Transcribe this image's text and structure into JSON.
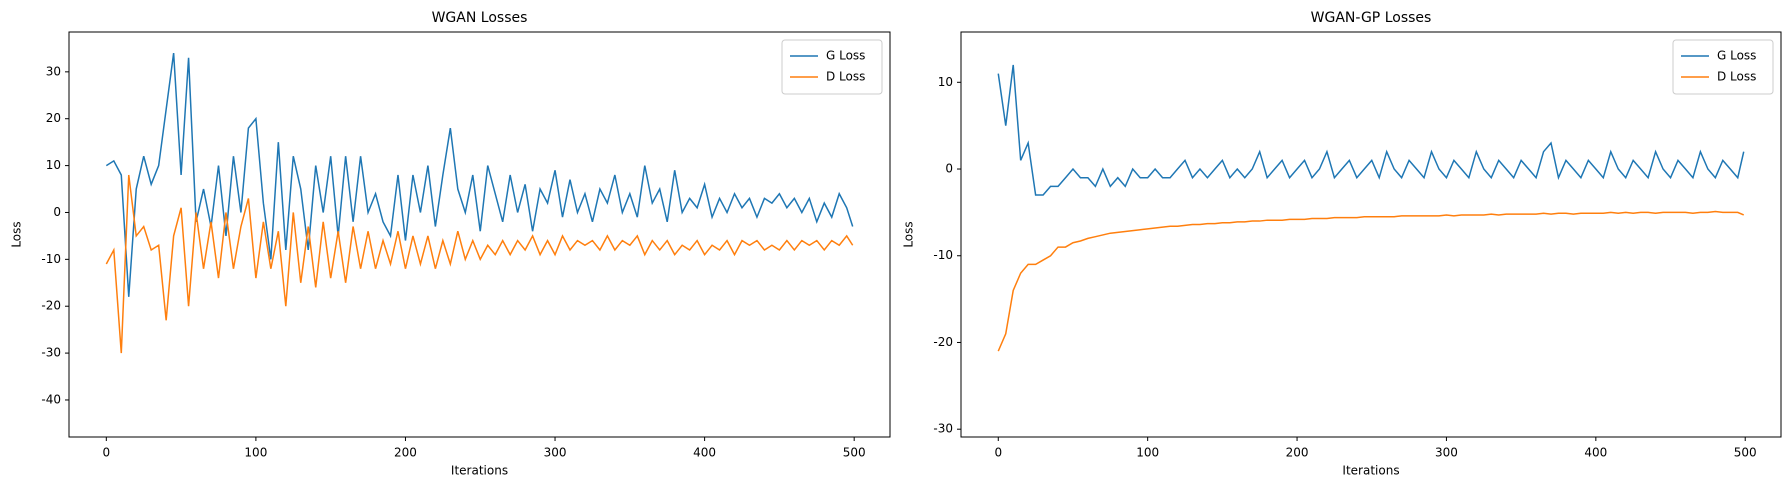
{
  "chart_data": [
    {
      "type": "line",
      "title": "WGAN Losses",
      "x_label": "Iterations",
      "y_label": "Loss",
      "x": [
        0,
        5,
        10,
        15,
        20,
        25,
        30,
        35,
        40,
        45,
        50,
        55,
        60,
        65,
        70,
        75,
        80,
        85,
        90,
        95,
        100,
        105,
        110,
        115,
        120,
        125,
        130,
        135,
        140,
        145,
        150,
        155,
        160,
        165,
        170,
        175,
        180,
        185,
        190,
        195,
        200,
        205,
        210,
        215,
        220,
        225,
        230,
        235,
        240,
        245,
        250,
        255,
        260,
        265,
        270,
        275,
        280,
        285,
        290,
        295,
        300,
        305,
        310,
        315,
        320,
        325,
        330,
        335,
        340,
        345,
        350,
        355,
        360,
        365,
        370,
        375,
        380,
        385,
        390,
        395,
        400,
        405,
        410,
        415,
        420,
        425,
        430,
        435,
        440,
        445,
        450,
        455,
        460,
        465,
        470,
        475,
        480,
        485,
        490,
        495,
        499
      ],
      "series": [
        {
          "name": "G Loss",
          "color": "#1f77b4",
          "values": [
            10,
            11,
            8,
            -18,
            5,
            12,
            6,
            10,
            22,
            34,
            8,
            33,
            -2,
            5,
            -3,
            10,
            -5,
            12,
            0,
            18,
            20,
            2,
            -10,
            15,
            -8,
            12,
            5,
            -8,
            10,
            0,
            12,
            -5,
            12,
            -2,
            12,
            0,
            4,
            -2,
            -5,
            8,
            -6,
            8,
            0,
            10,
            -3,
            8,
            18,
            5,
            0,
            8,
            -4,
            10,
            4,
            -2,
            8,
            0,
            6,
            -4,
            5,
            2,
            9,
            -1,
            7,
            0,
            4,
            -2,
            5,
            2,
            8,
            0,
            4,
            -1,
            10,
            2,
            5,
            -2,
            9,
            0,
            3,
            1,
            6,
            -1,
            3,
            0,
            4,
            1,
            3,
            -1,
            3,
            2,
            4,
            1,
            3,
            0,
            3,
            -2,
            2,
            -1,
            4,
            1,
            -3
          ]
        },
        {
          "name": "D Loss",
          "color": "#ff7f0e",
          "values": [
            -11,
            -8,
            -30,
            8,
            -5,
            -3,
            -8,
            -7,
            -23,
            -5,
            1,
            -20,
            0,
            -12,
            -2,
            -14,
            0,
            -12,
            -3,
            3,
            -14,
            -2,
            -12,
            -4,
            -20,
            0,
            -15,
            -3,
            -16,
            -2,
            -14,
            -4,
            -15,
            -3,
            -12,
            -4,
            -12,
            -6,
            -11,
            -4,
            -12,
            -5,
            -11,
            -5,
            -12,
            -6,
            -11,
            -4,
            -10,
            -6,
            -10,
            -7,
            -9,
            -6,
            -9,
            -6,
            -8,
            -5,
            -9,
            -6,
            -9,
            -5,
            -8,
            -6,
            -7,
            -6,
            -8,
            -5,
            -8,
            -6,
            -7,
            -5,
            -9,
            -6,
            -8,
            -6,
            -9,
            -7,
            -8,
            -6,
            -9,
            -7,
            -8,
            -6,
            -9,
            -6,
            -7,
            -6,
            -8,
            -7,
            -8,
            -6,
            -8,
            -6,
            -7,
            -6,
            -8,
            -6,
            -7,
            -5,
            -7
          ]
        }
      ],
      "xlim": [
        -24.95,
        523.95
      ],
      "ylim": [
        -47.9,
        38.5
      ],
      "xticks": [
        0,
        100,
        200,
        300,
        400,
        500
      ],
      "yticks": [
        -40,
        -30,
        -20,
        -10,
        0,
        10,
        20,
        30
      ],
      "legend": "upper right"
    },
    {
      "type": "line",
      "title": "WGAN-GP Losses",
      "x_label": "Iterations",
      "y_label": "Loss",
      "x": [
        0,
        5,
        10,
        15,
        20,
        25,
        30,
        35,
        40,
        45,
        50,
        55,
        60,
        65,
        70,
        75,
        80,
        85,
        90,
        95,
        100,
        105,
        110,
        115,
        120,
        125,
        130,
        135,
        140,
        145,
        150,
        155,
        160,
        165,
        170,
        175,
        180,
        185,
        190,
        195,
        200,
        205,
        210,
        215,
        220,
        225,
        230,
        235,
        240,
        245,
        250,
        255,
        260,
        265,
        270,
        275,
        280,
        285,
        290,
        295,
        300,
        305,
        310,
        315,
        320,
        325,
        330,
        335,
        340,
        345,
        350,
        355,
        360,
        365,
        370,
        375,
        380,
        385,
        390,
        395,
        400,
        405,
        410,
        415,
        420,
        425,
        430,
        435,
        440,
        445,
        450,
        455,
        460,
        465,
        470,
        475,
        480,
        485,
        490,
        495,
        499
      ],
      "series": [
        {
          "name": "G Loss",
          "color": "#1f77b4",
          "values": [
            11,
            5,
            12,
            1,
            3,
            -3,
            -3,
            -2,
            -2,
            -1,
            0,
            -1,
            -1,
            -2,
            0,
            -2,
            -1,
            -2,
            0,
            -1,
            -1,
            0,
            -1,
            -1,
            0,
            1,
            -1,
            0,
            -1,
            0,
            1,
            -1,
            0,
            -1,
            0,
            2,
            -1,
            0,
            1,
            -1,
            0,
            1,
            -1,
            0,
            2,
            -1,
            0,
            1,
            -1,
            0,
            1,
            -1,
            2,
            0,
            -1,
            1,
            0,
            -1,
            2,
            0,
            -1,
            1,
            0,
            -1,
            2,
            0,
            -1,
            1,
            0,
            -1,
            1,
            0,
            -1,
            2,
            3,
            -1,
            1,
            0,
            -1,
            1,
            0,
            -1,
            2,
            0,
            -1,
            1,
            0,
            -1,
            2,
            0,
            -1,
            1,
            0,
            -1,
            2,
            0,
            -1,
            1,
            0,
            -1,
            2
          ]
        },
        {
          "name": "D Loss",
          "color": "#ff7f0e",
          "values": [
            -21,
            -19,
            -14,
            -12,
            -11,
            -11,
            -10.5,
            -10,
            -9,
            -9,
            -8.5,
            -8.3,
            -8,
            -7.8,
            -7.6,
            -7.4,
            -7.3,
            -7.2,
            -7.1,
            -7,
            -6.9,
            -6.8,
            -6.7,
            -6.6,
            -6.6,
            -6.5,
            -6.4,
            -6.4,
            -6.3,
            -6.3,
            -6.2,
            -6.2,
            -6.1,
            -6.1,
            -6,
            -6,
            -5.9,
            -5.9,
            -5.9,
            -5.8,
            -5.8,
            -5.8,
            -5.7,
            -5.7,
            -5.7,
            -5.6,
            -5.6,
            -5.6,
            -5.6,
            -5.5,
            -5.5,
            -5.5,
            -5.5,
            -5.5,
            -5.4,
            -5.4,
            -5.4,
            -5.4,
            -5.4,
            -5.4,
            -5.3,
            -5.4,
            -5.3,
            -5.3,
            -5.3,
            -5.3,
            -5.2,
            -5.3,
            -5.2,
            -5.2,
            -5.2,
            -5.2,
            -5.2,
            -5.1,
            -5.2,
            -5.1,
            -5.1,
            -5.2,
            -5.1,
            -5.1,
            -5.1,
            -5.1,
            -5,
            -5.1,
            -5,
            -5.1,
            -5,
            -5,
            -5.1,
            -5,
            -5,
            -5,
            -5,
            -5.1,
            -5,
            -5,
            -4.9,
            -5,
            -5,
            -5,
            -5.3
          ]
        }
      ],
      "xlim": [
        -24.95,
        523.95
      ],
      "ylim": [
        -30.9,
        15.8
      ],
      "xticks": [
        0,
        100,
        200,
        300,
        400,
        500
      ],
      "yticks": [
        -30,
        -20,
        -10,
        0,
        10
      ],
      "legend": "upper right"
    }
  ]
}
